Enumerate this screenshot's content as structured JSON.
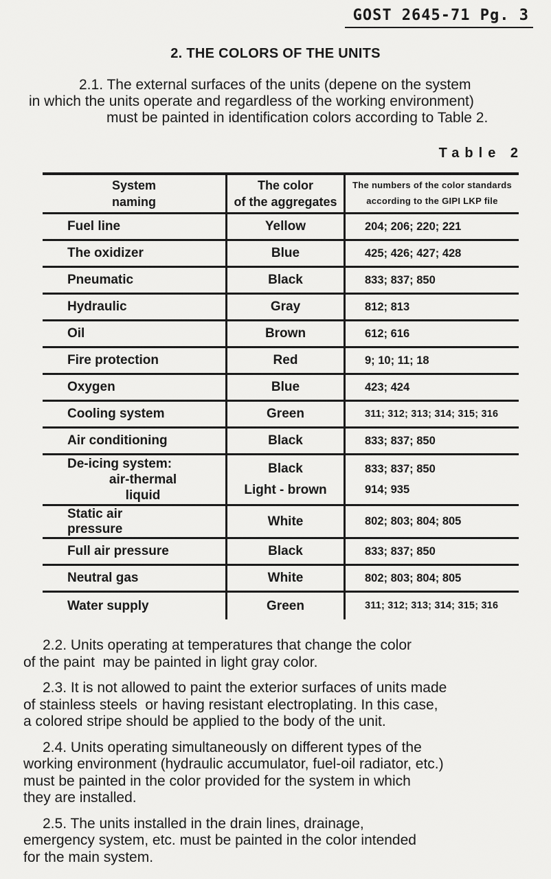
{
  "header": {
    "reference": "GOST 2645-71 Pg. 3"
  },
  "section": {
    "title": "2. THE COLORS OF THE UNITS"
  },
  "intro": {
    "lines": [
      "2.1. The external surfaces of the units (depene on the system",
      "in which the units operate and regardless of the working environment)",
      "must be painted in identification colors according to Table 2."
    ]
  },
  "table": {
    "label": "Table 2",
    "columns": {
      "system": [
        "System",
        "naming"
      ],
      "color": [
        "The color",
        "of the aggregates"
      ],
      "numbers": [
        "The numbers of the color standards",
        "according to the GIPI LKP file"
      ]
    },
    "rows": [
      {
        "system": [
          "Fuel line"
        ],
        "color": [
          "Yellow"
        ],
        "numbers": [
          "204; 206; 220; 221"
        ]
      },
      {
        "system": [
          "The oxidizer"
        ],
        "color": [
          "Blue"
        ],
        "numbers": [
          "425; 426; 427; 428"
        ]
      },
      {
        "system": [
          "Pneumatic"
        ],
        "color": [
          "Black"
        ],
        "numbers": [
          "833; 837; 850"
        ]
      },
      {
        "system": [
          "Hydraulic"
        ],
        "color": [
          "Gray"
        ],
        "numbers": [
          "812; 813"
        ]
      },
      {
        "system": [
          "Oil"
        ],
        "color": [
          "Brown"
        ],
        "numbers": [
          "612; 616"
        ]
      },
      {
        "system": [
          "Fire protection"
        ],
        "color": [
          "Red"
        ],
        "numbers": [
          "9; 10; 11; 18"
        ]
      },
      {
        "system": [
          "Oxygen"
        ],
        "color": [
          "Blue"
        ],
        "numbers": [
          "423; 424"
        ]
      },
      {
        "system": [
          "Cooling system"
        ],
        "color": [
          "Green"
        ],
        "numbers": [
          "311; 312; 313; 314; 315; 316"
        ]
      },
      {
        "system": [
          "Air conditioning"
        ],
        "color": [
          "Black"
        ],
        "numbers": [
          "833; 837; 850"
        ]
      },
      {
        "system": [
          "De-icing system:",
          "air-thermal",
          "liquid"
        ],
        "color": [
          "Black",
          "Light - brown"
        ],
        "numbers": [
          "833; 837; 850",
          "914; 935"
        ]
      },
      {
        "system": [
          "Static air",
          "pressure"
        ],
        "color": [
          "White"
        ],
        "numbers": [
          "802; 803; 804; 805"
        ]
      },
      {
        "system": [
          "Full air pressure"
        ],
        "color": [
          "Black"
        ],
        "numbers": [
          "833; 837; 850"
        ]
      },
      {
        "system": [
          "Neutral gas"
        ],
        "color": [
          "White"
        ],
        "numbers": [
          "802; 803; 804; 805"
        ]
      },
      {
        "system": [
          "Water supply"
        ],
        "color": [
          "Green"
        ],
        "numbers": [
          "311; 312; 313; 314; 315; 316"
        ]
      }
    ]
  },
  "paragraphs": [
    {
      "id": "2.2",
      "lines": [
        "2.2. Units operating at temperatures that change the color",
        "of the paint  may be painted in light gray color."
      ]
    },
    {
      "id": "2.3",
      "lines": [
        "2.3. It is not allowed to paint the exterior surfaces of units made",
        "of stainless steels  or having resistant electroplating. In this case,",
        "a colored stripe should be applied to the body of the unit."
      ]
    },
    {
      "id": "2.4",
      "lines": [
        "2.4. Units operating simultaneously on different types of the",
        "working environment (hydraulic accumulator, fuel-oil radiator, etc.)",
        "must be painted in the color provided for the system in which",
        "they are installed."
      ]
    },
    {
      "id": "2.5",
      "lines": [
        "2.5. The units installed in the drain lines, drainage,",
        "emergency system, etc. must be painted in the color intended",
        "for the main system."
      ]
    }
  ],
  "colors": {
    "paper": "#f2f1ed",
    "ink": "#141414",
    "rule": "#161616"
  }
}
